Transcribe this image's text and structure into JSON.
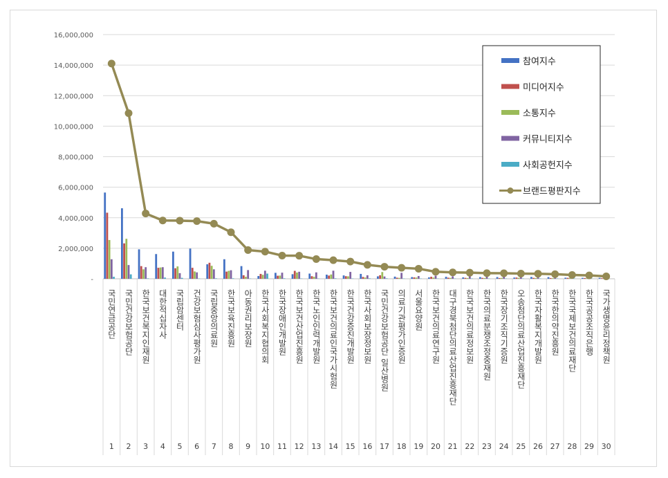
{
  "chart_data": {
    "type": "bar",
    "title": "",
    "xlabel": "",
    "ylabel": "",
    "ylim": [
      0,
      16000000
    ],
    "yticks": [
      "-",
      "2,000,000",
      "4,000,000",
      "6,000,000",
      "8,000,000",
      "10,000,000",
      "12,000,000",
      "14,000,000",
      "16,000,000"
    ],
    "ytick_values": [
      0,
      2000000,
      4000000,
      6000000,
      8000000,
      10000000,
      12000000,
      14000000,
      16000000
    ],
    "grid": true,
    "legend_position": "top-right",
    "ranks": [
      "1",
      "2",
      "3",
      "4",
      "5",
      "6",
      "7",
      "8",
      "9",
      "10",
      "11",
      "12",
      "13",
      "14",
      "15",
      "16",
      "17",
      "18",
      "19",
      "20",
      "21",
      "22",
      "23",
      "24",
      "25",
      "26",
      "27",
      "28",
      "29",
      "30"
    ],
    "categories": [
      "국민연금공단",
      "국민건강보험공단",
      "한국보건복지인재원",
      "대한적십자사",
      "국립암센터",
      "건강보험심사평가원",
      "국립중앙의료원",
      "한국보육진흥원",
      "아동권리보장원",
      "한국사회복지협의회",
      "한국장애인개발원",
      "한국보건산업진흥원",
      "한국노인인력개발원",
      "한국보건의료인국가시험원",
      "한국건강증진개발원",
      "한국사회보장정보원",
      "국민건강보험공단 일산병원",
      "의료기관평가인증원",
      "서울요양원",
      "한국보건의료연구원",
      "대구경북첨단의료산업진흥재단",
      "한국보건의료정보원",
      "한국의료분쟁조정중재원",
      "한국장기조직기증원",
      "오송첨단의료산업진흥재단",
      "한국자활복지개발원",
      "한국한의약진흥원",
      "한국국제보건의료재단",
      "한국공공조직은행",
      "국가생명윤리정책원"
    ],
    "series": [
      {
        "name": "참여지수",
        "type": "bar",
        "color": "#4472c4",
        "values": [
          5650000,
          4620000,
          1930000,
          1620000,
          1780000,
          1980000,
          950000,
          1280000,
          830000,
          180000,
          390000,
          300000,
          340000,
          270000,
          220000,
          320000,
          160000,
          140000,
          110000,
          90000,
          130000,
          90000,
          110000,
          110000,
          80000,
          120000,
          110000,
          70000,
          60000,
          60000
        ]
      },
      {
        "name": "미디어지수",
        "type": "bar",
        "color": "#c0504d",
        "values": [
          4330000,
          2320000,
          830000,
          720000,
          690000,
          720000,
          1050000,
          470000,
          230000,
          320000,
          200000,
          520000,
          170000,
          210000,
          170000,
          120000,
          230000,
          70000,
          90000,
          130000,
          70000,
          60000,
          60000,
          50000,
          80000,
          60000,
          50000,
          60000,
          50000,
          40000
        ]
      },
      {
        "name": "소통지수",
        "type": "bar",
        "color": "#9bbb59",
        "values": [
          2540000,
          2620000,
          620000,
          740000,
          810000,
          480000,
          850000,
          520000,
          130000,
          260000,
          210000,
          410000,
          130000,
          280000,
          160000,
          80000,
          440000,
          60000,
          80000,
          80000,
          60000,
          50000,
          50000,
          60000,
          60000,
          50000,
          40000,
          50000,
          40000,
          30000
        ]
      },
      {
        "name": "커뮤니티지수",
        "type": "bar",
        "color": "#8064a2",
        "values": [
          1280000,
          900000,
          760000,
          760000,
          370000,
          420000,
          620000,
          560000,
          570000,
          530000,
          400000,
          460000,
          420000,
          530000,
          450000,
          230000,
          150000,
          390000,
          180000,
          200000,
          160000,
          170000,
          140000,
          140000,
          140000,
          110000,
          100000,
          90000,
          70000,
          60000
        ]
      },
      {
        "name": "사회공헌지수",
        "type": "bar",
        "color": "#4bacc6",
        "values": [
          130000,
          290000,
          30000,
          80000,
          60000,
          20000,
          30000,
          30000,
          20000,
          340000,
          30000,
          20000,
          20000,
          30000,
          20000,
          30000,
          30000,
          20000,
          20000,
          20000,
          20000,
          20000,
          20000,
          20000,
          20000,
          20000,
          20000,
          20000,
          20000,
          20000
        ]
      },
      {
        "name": "브랜드평판지수",
        "type": "line",
        "color": "#948a54",
        "values": [
          14100000,
          10850000,
          4280000,
          3820000,
          3810000,
          3780000,
          3610000,
          3050000,
          1880000,
          1780000,
          1520000,
          1510000,
          1290000,
          1220000,
          1130000,
          910000,
          790000,
          720000,
          660000,
          460000,
          420000,
          400000,
          370000,
          360000,
          340000,
          330000,
          300000,
          250000,
          220000,
          160000
        ]
      }
    ]
  }
}
